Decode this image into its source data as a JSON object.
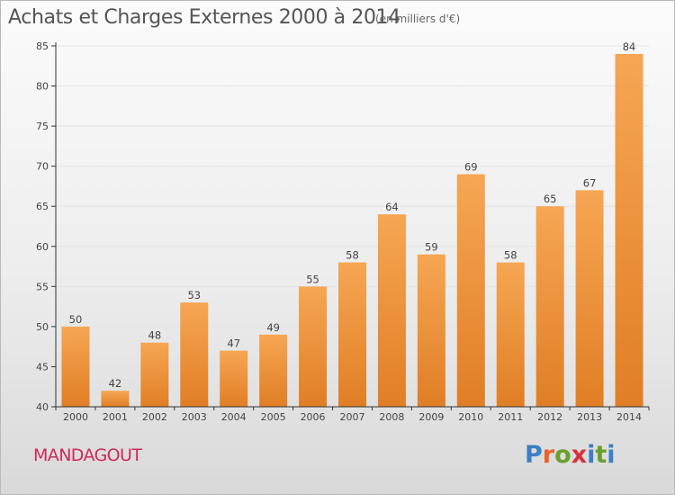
{
  "title": "Achats et Charges Externes 2000 à 2014",
  "subtitle": "(en milliers d'€)",
  "place": "MANDAGOUT",
  "logo": {
    "text": "Proxiti",
    "letter_colors": [
      "#3b7fc4",
      "#e8622a",
      "#6a9f2d",
      "#d9323a",
      "#3b7fc4",
      "#6a9f2d",
      "#3b7fc4"
    ]
  },
  "colors": {
    "bar_top": "#f6a653",
    "bar_bottom": "#e07e25",
    "axis": "#333333",
    "grid": "#e3e3e3",
    "text": "#444444"
  },
  "chart_data": {
    "type": "bar",
    "categories": [
      "2000",
      "2001",
      "2002",
      "2003",
      "2004",
      "2005",
      "2006",
      "2007",
      "2008",
      "2009",
      "2010",
      "2011",
      "2012",
      "2013",
      "2014"
    ],
    "values": [
      50,
      42,
      48,
      53,
      47,
      49,
      55,
      58,
      64,
      59,
      69,
      58,
      65,
      67,
      84
    ],
    "ylim": [
      40,
      85
    ],
    "yticks": [
      40,
      45,
      50,
      55,
      60,
      65,
      70,
      75,
      80,
      85
    ],
    "grid": true
  }
}
